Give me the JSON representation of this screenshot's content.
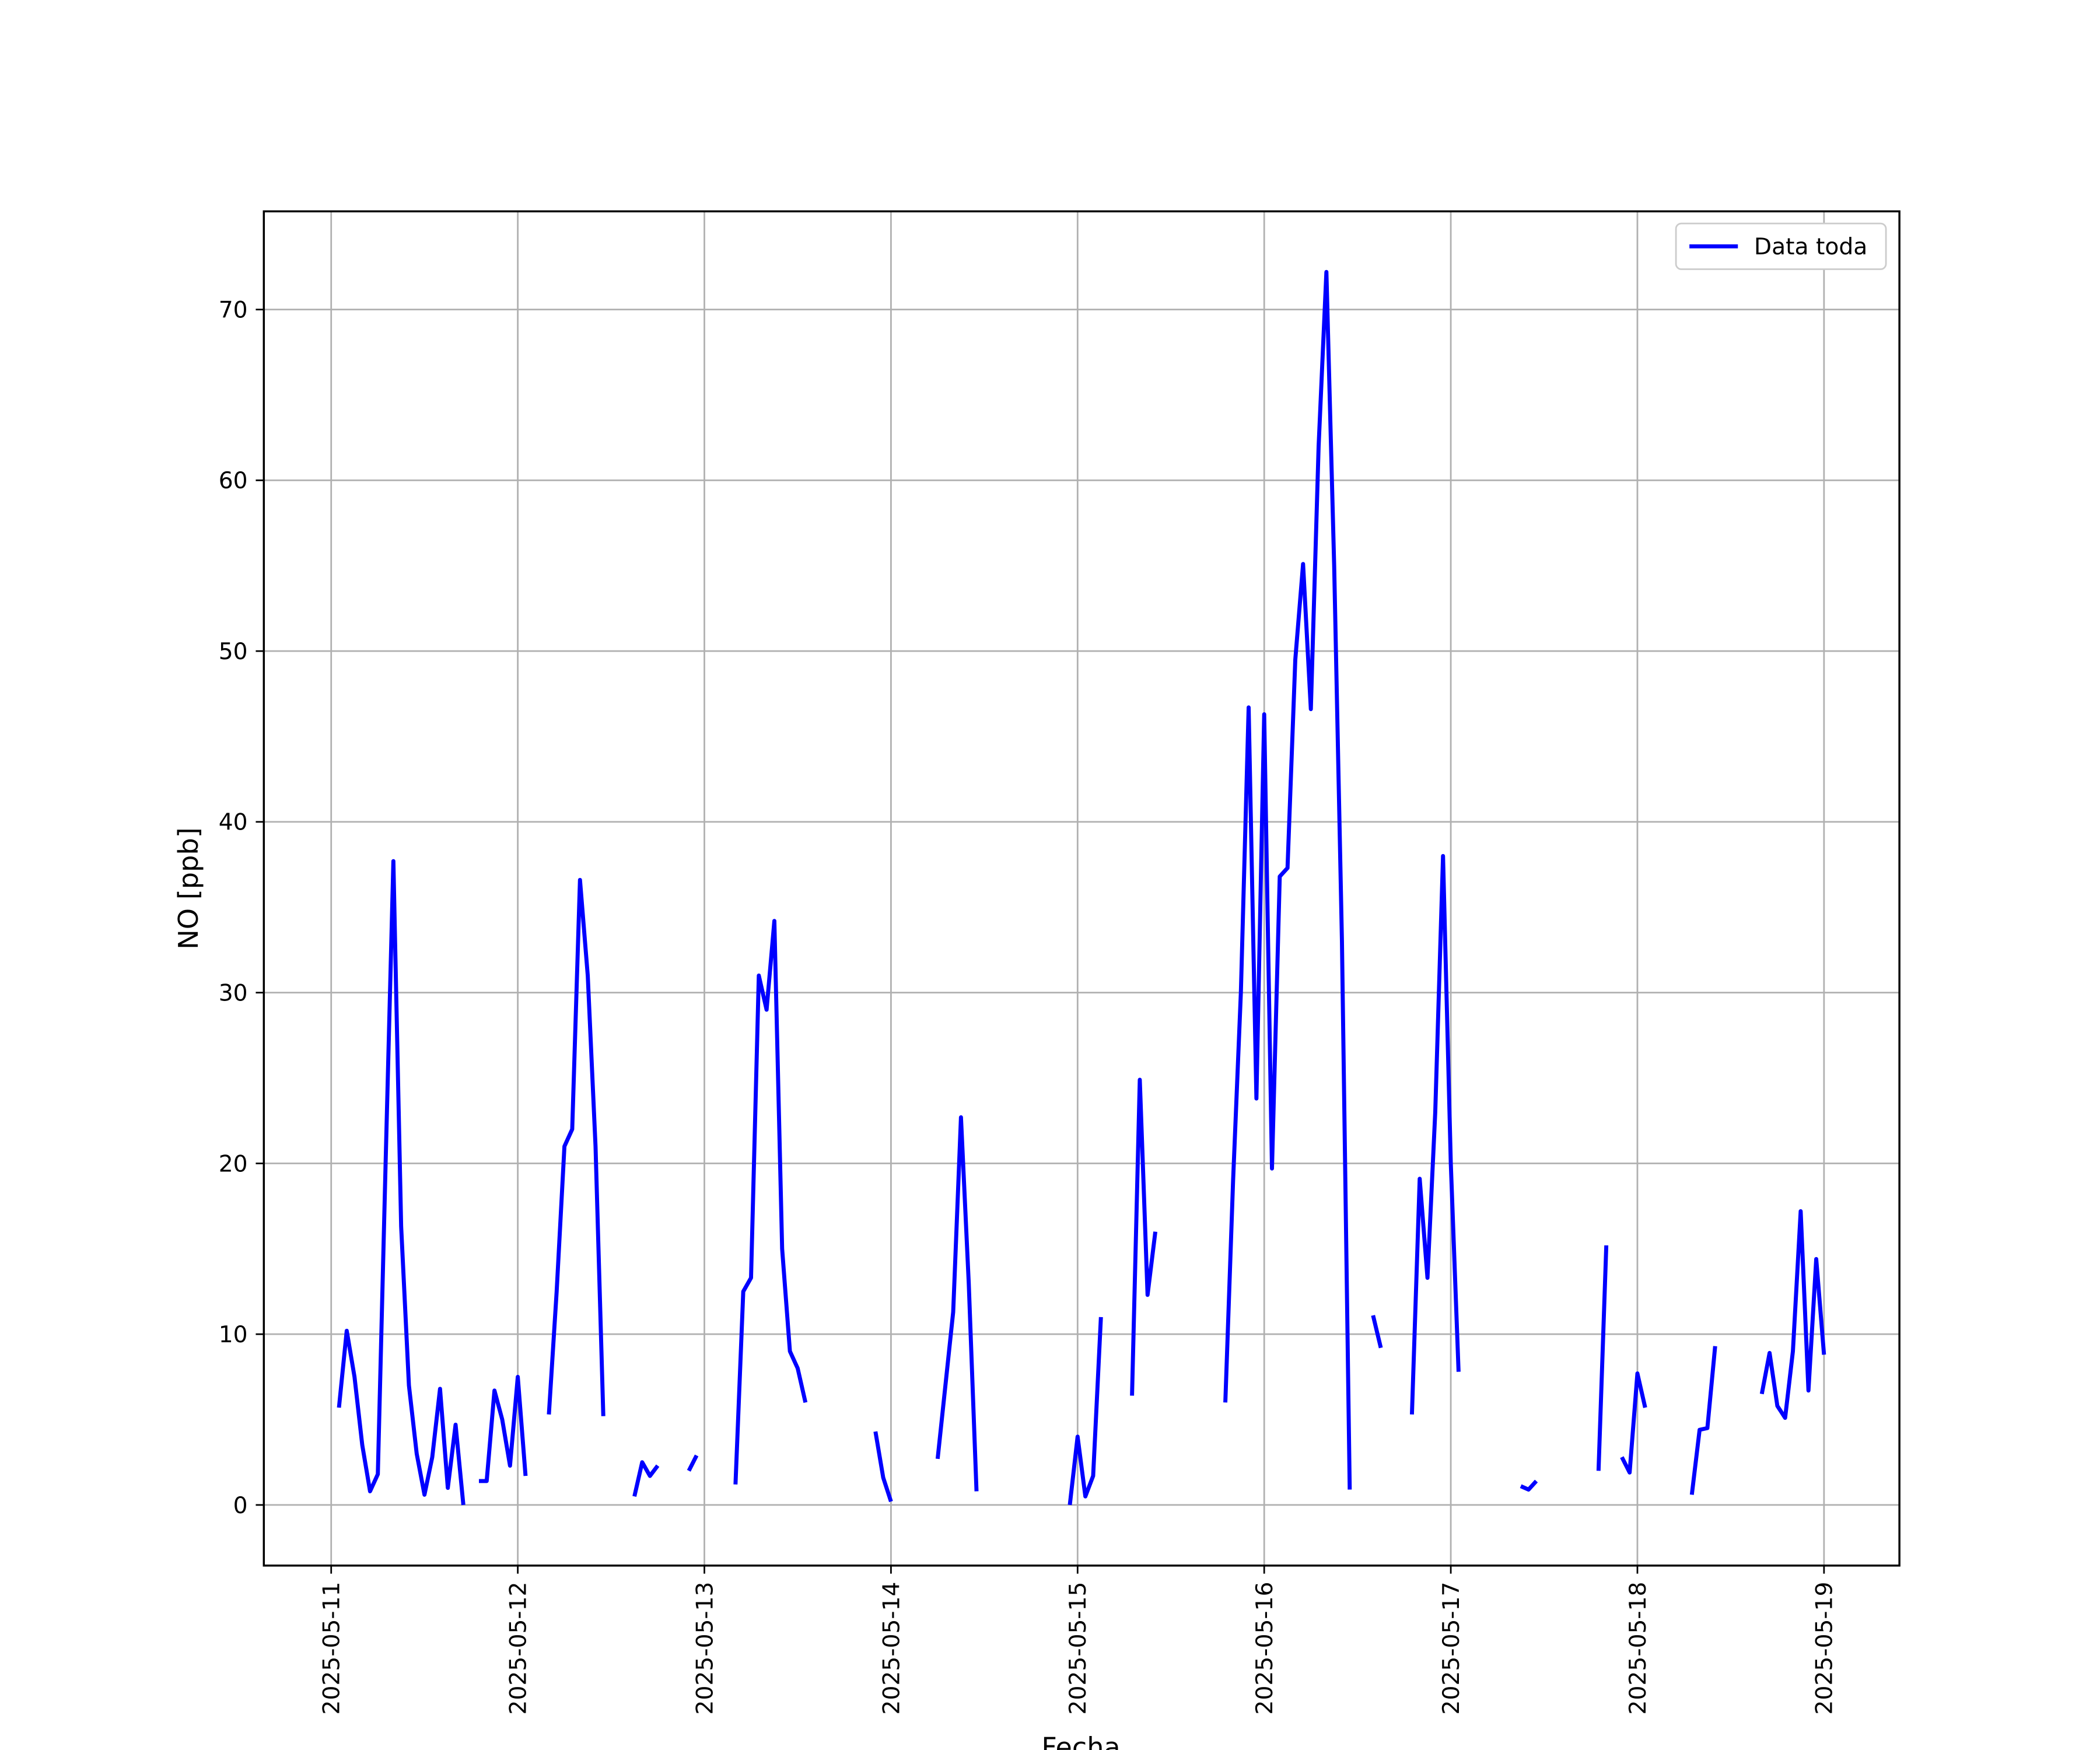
{
  "chart_data": {
    "type": "line",
    "xlabel": "Fecha",
    "ylabel": "NO [ppb]",
    "x": [
      1,
      2,
      3,
      4,
      5,
      6,
      7,
      8,
      9,
      10,
      11,
      12,
      13,
      14,
      15,
      16,
      17,
      18,
      19,
      20,
      21,
      22,
      23,
      24,
      25,
      26,
      27,
      28,
      29,
      30,
      31,
      32,
      33,
      34,
      35,
      36,
      37,
      38,
      39,
      40,
      41,
      42,
      43,
      44,
      45,
      46,
      47,
      48,
      49,
      50,
      51,
      52,
      53,
      54,
      55,
      56,
      57,
      58,
      59,
      60,
      61,
      62,
      63,
      64,
      65,
      66,
      67,
      68,
      69,
      70,
      71,
      72,
      73,
      74,
      75,
      76,
      77,
      78,
      79,
      80,
      81,
      82,
      83,
      84,
      85,
      86,
      87,
      88,
      89,
      90,
      91,
      92,
      93,
      94,
      95,
      96,
      97,
      98,
      99,
      100,
      101,
      102,
      103,
      104,
      105,
      106,
      107,
      108,
      109,
      110,
      111,
      112,
      113,
      114,
      115,
      116,
      117,
      118,
      119,
      120,
      121,
      122,
      123,
      124,
      125,
      126,
      127,
      128,
      129,
      130,
      131,
      132,
      133,
      134,
      135,
      136,
      137,
      138,
      139,
      140,
      141,
      142,
      143,
      144,
      145,
      146,
      147,
      148,
      149,
      150,
      151,
      152,
      153,
      154,
      155,
      156,
      157,
      158,
      159,
      160,
      161,
      162,
      163,
      164,
      165,
      166,
      167,
      168,
      169,
      170,
      171,
      172,
      173,
      174,
      175,
      176,
      177,
      178,
      179,
      180,
      181,
      182,
      183,
      184,
      185,
      186,
      187,
      188,
      189,
      190,
      191,
      192
    ],
    "series": [
      {
        "name": "Data toda",
        "color": "#0000ff",
        "values": [
          5.7,
          10.2,
          7.5,
          3.5,
          0.8,
          1.8,
          20,
          37.7,
          16.3,
          7,
          3,
          0.6,
          2.8,
          6.8,
          1,
          4.7,
          0,
          null,
          1.4,
          1.4,
          6.7,
          5,
          2.3,
          7.5,
          1.7,
          null,
          null,
          5.3,
          12.5,
          21,
          22,
          36.6,
          31,
          21,
          5.2,
          null,
          null,
          null,
          0.5,
          2.5,
          1.7,
          2.3,
          null,
          null,
          null,
          2,
          2.9,
          null,
          null,
          null,
          null,
          1.2,
          12.5,
          13.3,
          31,
          29,
          34.2,
          15,
          9,
          8,
          6,
          null,
          null,
          null,
          null,
          null,
          null,
          null,
          null,
          4.3,
          1.6,
          0.2,
          null,
          null,
          null,
          null,
          null,
          2.7,
          7,
          11.3,
          22.7,
          13,
          0.8,
          null,
          null,
          null,
          null,
          null,
          null,
          null,
          null,
          null,
          null,
          null,
          0,
          4,
          0.5,
          1.7,
          11,
          null,
          null,
          null,
          6.4,
          24.9,
          12.3,
          16,
          null,
          null,
          null,
          null,
          null,
          null,
          null,
          null,
          6,
          19,
          30,
          46.7,
          23.8,
          46.3,
          19.7,
          36.8,
          37.3,
          49.5,
          55.1,
          46.6,
          62,
          72.2,
          55,
          33,
          0.9,
          null,
          null,
          11.1,
          9.2,
          null,
          null,
          null,
          5.3,
          19.1,
          13.3,
          23,
          38,
          20,
          7.8,
          null,
          null,
          null,
          null,
          null,
          null,
          null,
          1.1,
          0.9,
          1.4,
          null,
          null,
          null,
          null,
          null,
          null,
          null,
          2,
          15.2,
          null,
          2.8,
          1.9,
          7.7,
          5.7,
          null,
          null,
          null,
          null,
          null,
          0.6,
          4.4,
          4.5,
          9.3,
          null,
          null,
          null,
          null,
          null,
          6.5,
          8.9,
          5.8,
          5.1,
          9,
          17.2,
          6.7,
          14.4,
          8.8
        ]
      }
    ],
    "xlim": [
      -8.66,
      201.7
    ],
    "xticks": [
      {
        "value": 0,
        "label": "2025-05-11"
      },
      {
        "value": 24,
        "label": "2025-05-12"
      },
      {
        "value": 48,
        "label": "2025-05-13"
      },
      {
        "value": 72,
        "label": "2025-05-14"
      },
      {
        "value": 96,
        "label": "2025-05-15"
      },
      {
        "value": 120,
        "label": "2025-05-16"
      },
      {
        "value": 144,
        "label": "2025-05-17"
      },
      {
        "value": 168,
        "label": "2025-05-18"
      },
      {
        "value": 192,
        "label": "2025-05-19"
      }
    ],
    "ylim": [
      -3.55,
      75.75
    ],
    "yticks": [
      0,
      10,
      20,
      30,
      40,
      50,
      60,
      70
    ],
    "grid": true,
    "legend": "upper right"
  }
}
